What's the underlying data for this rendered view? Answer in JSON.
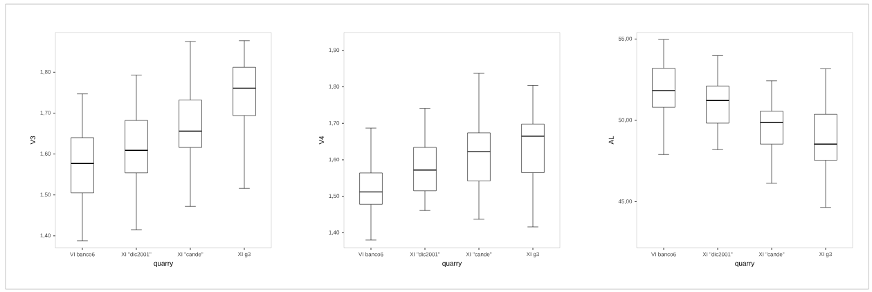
{
  "chart_data": [
    {
      "type": "box",
      "xlabel": "quarry",
      "ylabel": "V3",
      "categories": [
        "VI banco6",
        "XI \"dic2001\"",
        "XI \"cande\"",
        "XI g3"
      ],
      "ylim": [
        1.371,
        1.897
      ],
      "yticks": [
        {
          "value": 1.4,
          "label": "1,40"
        },
        {
          "value": 1.5,
          "label": "1,50"
        },
        {
          "value": 1.6,
          "label": "1,60"
        },
        {
          "value": 1.7,
          "label": "1,70"
        },
        {
          "value": 1.8,
          "label": "1,80"
        }
      ],
      "boxes": [
        {
          "low": 1.388,
          "q1": 1.505,
          "median": 1.577,
          "q3": 1.64,
          "high": 1.747
        },
        {
          "low": 1.415,
          "q1": 1.554,
          "median": 1.609,
          "q3": 1.682,
          "high": 1.793
        },
        {
          "low": 1.472,
          "q1": 1.616,
          "median": 1.656,
          "q3": 1.732,
          "high": 1.875
        },
        {
          "low": 1.516,
          "q1": 1.694,
          "median": 1.761,
          "q3": 1.812,
          "high": 1.877
        }
      ]
    },
    {
      "type": "box",
      "xlabel": "quarry",
      "ylabel": "V4",
      "categories": [
        "VI banco6",
        "XI \"dic2001\"",
        "XI \"cande\"",
        "XI g3"
      ],
      "ylim": [
        1.359,
        1.949
      ],
      "yticks": [
        {
          "value": 1.4,
          "label": "1,40"
        },
        {
          "value": 1.5,
          "label": "1,50"
        },
        {
          "value": 1.6,
          "label": "1,60"
        },
        {
          "value": 1.7,
          "label": "1,70"
        },
        {
          "value": 1.8,
          "label": "1,80"
        },
        {
          "value": 1.9,
          "label": "1,90"
        }
      ],
      "boxes": [
        {
          "low": 1.38,
          "q1": 1.478,
          "median": 1.512,
          "q3": 1.564,
          "high": 1.687
        },
        {
          "low": 1.461,
          "q1": 1.515,
          "median": 1.572,
          "q3": 1.634,
          "high": 1.741
        },
        {
          "low": 1.437,
          "q1": 1.542,
          "median": 1.622,
          "q3": 1.674,
          "high": 1.837
        },
        {
          "low": 1.416,
          "q1": 1.565,
          "median": 1.665,
          "q3": 1.698,
          "high": 1.804
        }
      ]
    },
    {
      "type": "box",
      "xlabel": "quarry",
      "ylabel": "AL",
      "categories": [
        "VI banco6",
        "XI \"dic2001\"",
        "XI \"cande\"",
        "XI g3"
      ],
      "ylim": [
        42.17,
        55.4
      ],
      "yticks": [
        {
          "value": 45,
          "label": "45,00"
        },
        {
          "value": 50,
          "label": "50,00"
        },
        {
          "value": 55,
          "label": "55,00"
        }
      ],
      "boxes": [
        {
          "low": 47.9,
          "q1": 50.8,
          "median": 51.83,
          "q3": 53.2,
          "high": 54.97
        },
        {
          "low": 48.2,
          "q1": 49.83,
          "median": 51.22,
          "q3": 52.11,
          "high": 53.98
        },
        {
          "low": 46.13,
          "q1": 48.54,
          "median": 49.87,
          "q3": 50.56,
          "high": 52.43
        },
        {
          "low": 44.65,
          "q1": 47.55,
          "median": 48.54,
          "q3": 50.37,
          "high": 53.17
        }
      ]
    }
  ]
}
